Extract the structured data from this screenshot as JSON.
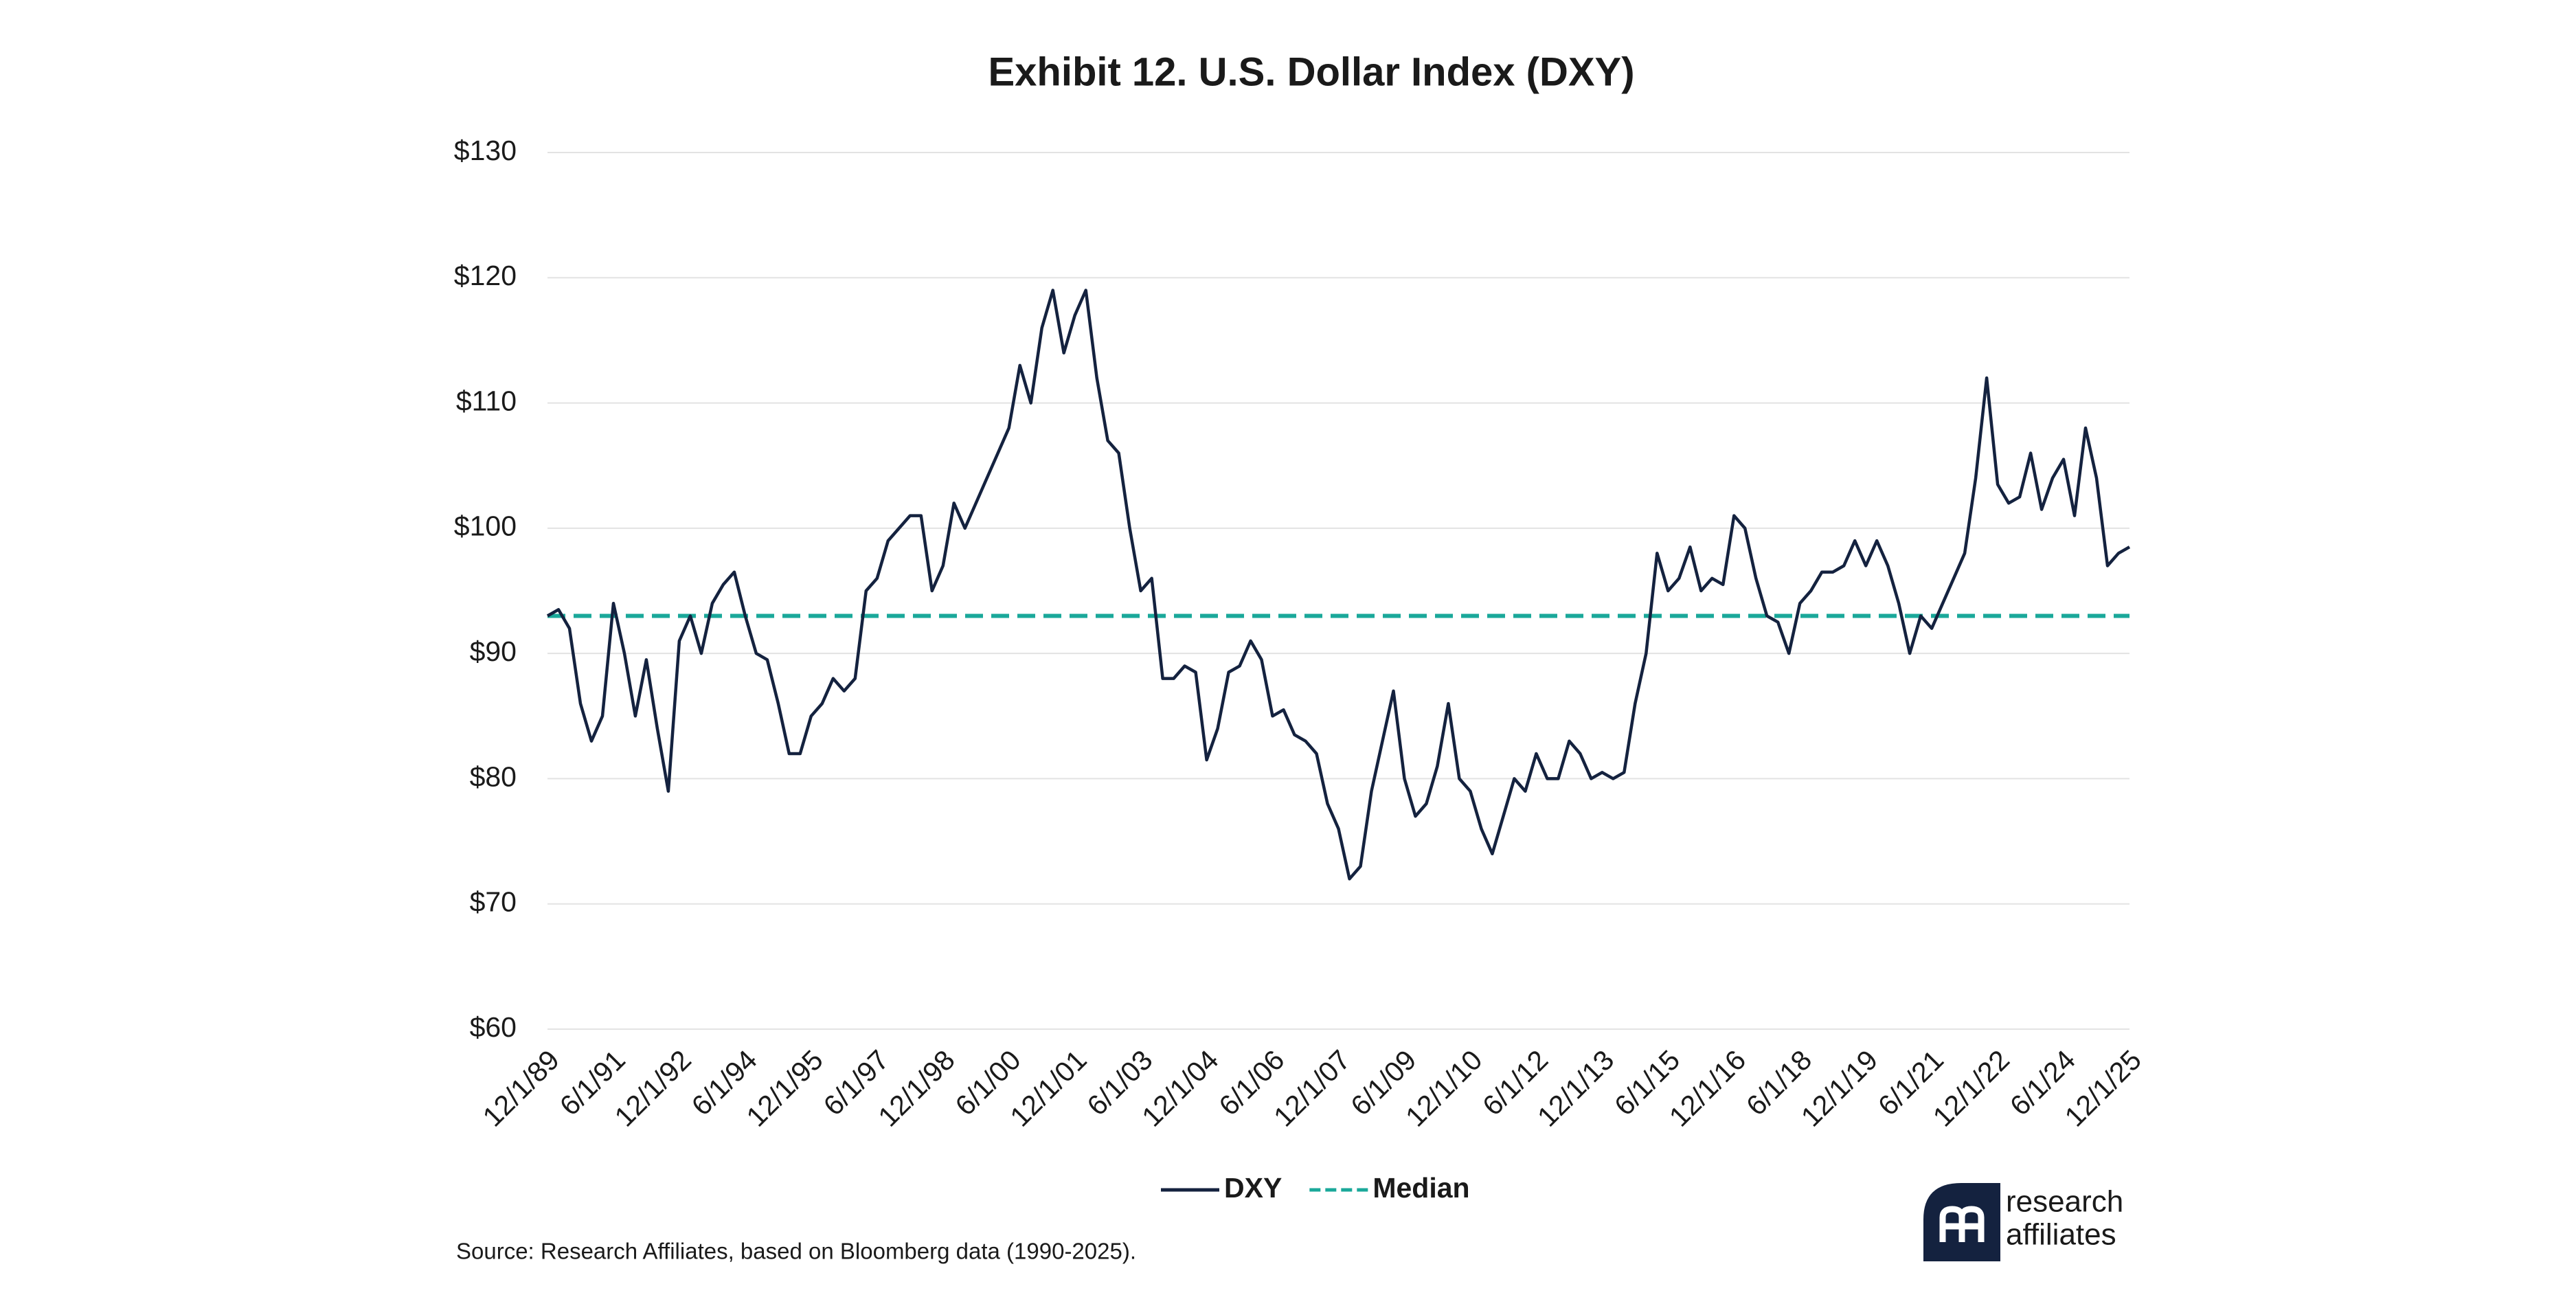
{
  "chart_data": {
    "type": "line",
    "title": "Exhibit 12. U.S. Dollar Index (DXY)",
    "categories": [
      "12/1/89",
      null,
      null,
      null,
      null,
      null,
      "6/1/91",
      null,
      null,
      null,
      null,
      null,
      "12/1/92",
      null,
      null,
      null,
      null,
      null,
      "6/1/94",
      null,
      null,
      null,
      null,
      null,
      "12/1/95",
      null,
      null,
      null,
      null,
      null,
      "6/1/97",
      null,
      null,
      null,
      null,
      null,
      "12/1/98",
      null,
      null,
      null,
      null,
      null,
      "6/1/00",
      null,
      null,
      null,
      null,
      null,
      "12/1/01",
      null,
      null,
      null,
      null,
      null,
      "6/1/03",
      null,
      null,
      null,
      null,
      null,
      "12/1/04",
      null,
      null,
      null,
      null,
      null,
      "6/1/06",
      null,
      null,
      null,
      null,
      null,
      "12/1/07",
      null,
      null,
      null,
      null,
      null,
      "6/1/09",
      null,
      null,
      null,
      null,
      null,
      "12/1/10",
      null,
      null,
      null,
      null,
      null,
      "6/1/12",
      null,
      null,
      null,
      null,
      null,
      "12/1/13",
      null,
      null,
      null,
      null,
      null,
      "6/1/15",
      null,
      null,
      null,
      null,
      null,
      "12/1/16",
      null,
      null,
      null,
      null,
      null,
      "6/1/18",
      null,
      null,
      null,
      null,
      null,
      "12/1/19",
      null,
      null,
      null,
      null,
      null,
      "6/1/21",
      null,
      null,
      null,
      null,
      null,
      "12/1/22",
      null,
      null,
      null,
      null,
      null,
      "6/1/24",
      null,
      null,
      null,
      null,
      null,
      "12/1/25"
    ],
    "series": [
      {
        "name": "DXY",
        "color": "#14223f",
        "values": [
          93,
          93.5,
          92,
          86,
          83,
          85,
          94,
          90,
          85,
          89.5,
          84,
          79,
          91,
          93,
          90,
          94,
          95.5,
          96.5,
          93,
          90,
          89.5,
          86,
          82,
          82,
          85,
          86,
          88,
          87,
          88,
          95,
          96,
          99,
          100,
          101,
          101,
          95,
          97,
          102,
          100,
          102,
          104,
          106,
          108,
          113,
          110,
          116,
          119,
          114,
          117,
          119,
          112,
          107,
          106,
          100,
          95,
          96,
          88,
          88,
          89,
          88.5,
          81.5,
          84,
          88.5,
          89,
          91,
          89.5,
          85,
          85.5,
          83.5,
          83,
          82,
          78,
          76,
          72,
          73,
          79,
          83,
          87,
          80,
          77,
          78,
          81,
          86,
          80,
          79,
          76,
          74,
          77,
          80,
          79,
          82,
          80,
          80,
          83,
          82,
          80,
          80.5,
          80,
          80.5,
          86,
          90,
          98,
          95,
          96,
          98.5,
          95,
          96,
          95.5,
          101,
          100,
          96,
          93,
          92.5,
          90,
          94,
          95,
          96.5,
          96.5,
          97,
          99,
          97,
          99,
          97,
          94,
          90,
          93,
          92,
          94,
          96,
          98,
          104,
          112,
          103.5,
          102,
          102.5,
          106,
          101.5,
          104,
          105.5,
          101,
          108,
          104,
          97,
          98,
          98.5
        ]
      }
    ],
    "reference_lines": [
      {
        "name": "Median",
        "value": 93,
        "color": "#1aa89a",
        "dashed": true
      }
    ],
    "ylim": [
      60,
      130
    ],
    "yticks": [
      {
        "value": 60,
        "label": "$60"
      },
      {
        "value": 70,
        "label": "$70"
      },
      {
        "value": 80,
        "label": "$80"
      },
      {
        "value": 90,
        "label": "$90"
      },
      {
        "value": 100,
        "label": "$100"
      },
      {
        "value": 110,
        "label": "$110"
      },
      {
        "value": 120,
        "label": "$120"
      },
      {
        "value": 130,
        "label": "$130"
      }
    ],
    "grid": true,
    "source": "Source: Research Affiliates, based on Bloomberg data (1990-2025).",
    "logo": {
      "line1": "research",
      "line2": "affiliates"
    }
  }
}
